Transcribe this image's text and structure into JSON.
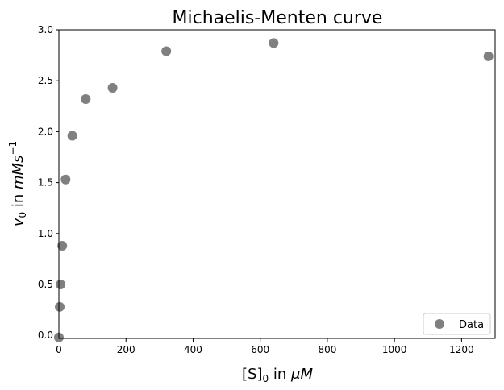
{
  "chart_data": {
    "type": "scatter",
    "title": "Michaelis-Menten curve",
    "xlabel": {
      "base": "[S]",
      "sub": "0",
      "text": " in ",
      "unit": "μM"
    },
    "ylabel": {
      "var": "v",
      "sub": "0",
      "text": " in ",
      "unit": "mMs",
      "sup": "−1"
    },
    "xlim": [
      0,
      1300
    ],
    "ylim": [
      -0.03,
      3.0
    ],
    "xticks": [
      0,
      200,
      400,
      600,
      800,
      1000,
      1200
    ],
    "yticks": [
      0.0,
      0.5,
      1.0,
      1.5,
      2.0,
      2.5,
      3.0
    ],
    "ytick_labels": [
      "0.0",
      "0.5",
      "1.0",
      "1.5",
      "2.0",
      "2.5",
      "3.0"
    ],
    "grid": false,
    "legend_position": "lower-right",
    "series": [
      {
        "name": "Data",
        "color": "#808080",
        "x": [
          0,
          2.5,
          5,
          10,
          20,
          40,
          80,
          160,
          320,
          640,
          1280
        ],
        "y": [
          -0.02,
          0.28,
          0.5,
          0.88,
          1.53,
          1.96,
          2.32,
          2.43,
          2.79,
          2.87,
          2.74
        ]
      }
    ]
  }
}
